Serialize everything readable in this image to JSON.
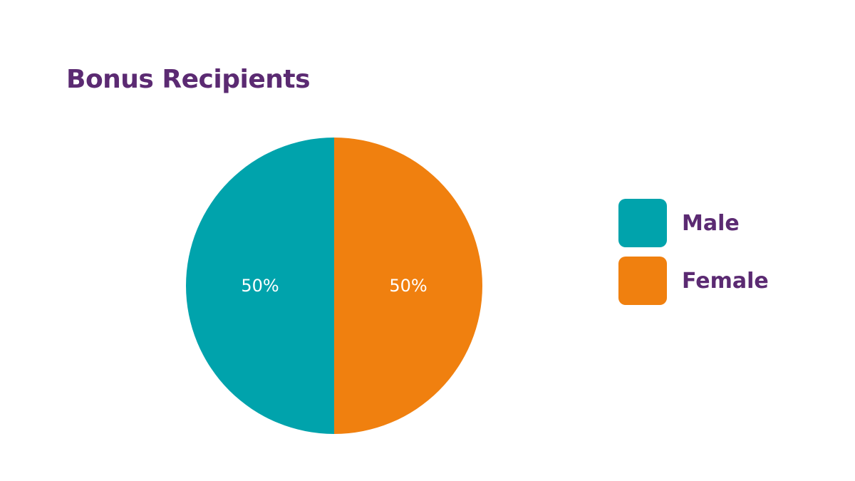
{
  "chart_data": {
    "type": "pie",
    "title": "Bonus Recipients",
    "slices": [
      {
        "label": "Male",
        "value": 50,
        "display": "50%",
        "color": "#00a3ac"
      },
      {
        "label": "Female",
        "value": 50,
        "display": "50%",
        "color": "#f0800f"
      }
    ],
    "legend_placement": "right"
  }
}
